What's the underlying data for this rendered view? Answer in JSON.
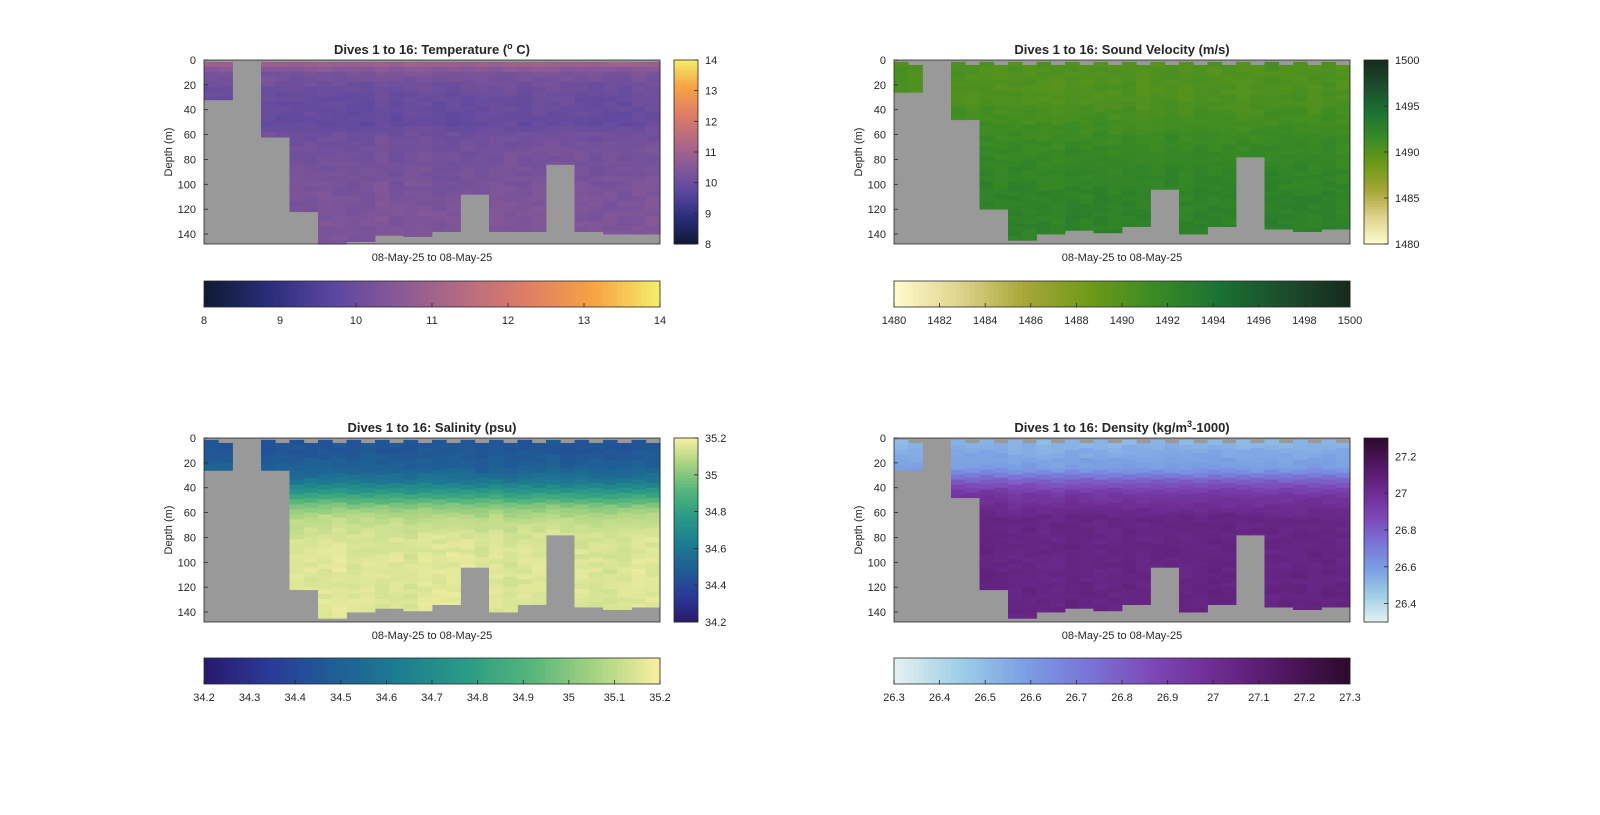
{
  "colors": {
    "land": "#999999",
    "axis": "#262626",
    "temperature_map": [
      "#0e1a33",
      "#2a2d7a",
      "#5b47a0",
      "#8a5a96",
      "#b76a82",
      "#e07f64",
      "#f7a444",
      "#f4ef6c"
    ],
    "sound_velocity_map": [
      "#fefccd",
      "#dfd38e",
      "#a8a738",
      "#6f9a18",
      "#3a8b24",
      "#1b7133",
      "#1b4d2c",
      "#182a1f"
    ],
    "salinity_map": [
      "#29186b",
      "#2a3a97",
      "#1f5e95",
      "#1d7d90",
      "#2a9a86",
      "#55b57b",
      "#a6d381",
      "#f9f0a3"
    ],
    "density_map": [
      "#e6f1f1",
      "#9fcfe6",
      "#7ba0e3",
      "#7a73d7",
      "#7c47b5",
      "#6d2a8f",
      "#50165f",
      "#2c0a2d"
    ]
  },
  "chart_data": [
    {
      "type": "heatmap",
      "title": "Dives 1 to 16: Temperature (",
      "title_sup": "o",
      "title_after": " C)",
      "xlabel": "08-May-25 to 08-May-25",
      "ylabel": "Depth (m)",
      "ylim": [
        0,
        148
      ],
      "yticks": [
        0,
        20,
        40,
        60,
        80,
        100,
        120,
        140
      ],
      "y_reversed": true,
      "vertical_colorbar": {
        "range": [
          8,
          14
        ],
        "ticks": [
          "14",
          "13",
          "12",
          "11",
          "10",
          "9",
          "8"
        ]
      },
      "horizontal_colorbar": {
        "range": [
          8,
          14
        ],
        "ticks": [
          "8",
          "9",
          "10",
          "11",
          "12",
          "13",
          "14"
        ]
      },
      "dive_max_depth_m": [
        32,
        0,
        62,
        122,
        148,
        146,
        141,
        142,
        138,
        108,
        138,
        138,
        84,
        138,
        140,
        140
      ],
      "profile": {
        "depth_m": [
          0,
          10,
          20,
          30,
          40,
          50,
          60,
          80,
          100,
          120,
          148
        ],
        "value": [
          11.2,
          10.3,
          10.1,
          9.95,
          9.95,
          9.85,
          10.1,
          10.2,
          10.25,
          10.35,
          10.35
        ]
      }
    },
    {
      "type": "heatmap",
      "title": "Dives 1 to 16: Sound Velocity (m/s)",
      "xlabel": "08-May-25 to 08-May-25",
      "ylabel": "Depth (m)",
      "ylim": [
        0,
        148
      ],
      "yticks": [
        0,
        20,
        40,
        60,
        80,
        100,
        120,
        140
      ],
      "y_reversed": true,
      "vertical_colorbar": {
        "range": [
          1480,
          1500
        ],
        "ticks": [
          "1500",
          "1495",
          "1490",
          "1485",
          "1480"
        ]
      },
      "horizontal_colorbar": {
        "range": [
          1480,
          1500
        ],
        "ticks": [
          "1480",
          "1482",
          "1484",
          "1486",
          "1488",
          "1490",
          "1492",
          "1494",
          "1496",
          "1498",
          "1500"
        ]
      },
      "dive_max_depth_m": [
        26,
        0,
        48,
        120,
        145,
        140,
        137,
        139,
        134,
        104,
        140,
        134,
        78,
        136,
        138,
        136
      ],
      "profile": {
        "depth_m": [
          0,
          10,
          30,
          50,
          60,
          70,
          90,
          110,
          148
        ],
        "value": [
          1490.2,
          1490.3,
          1490.4,
          1491.0,
          1491.4,
          1491.7,
          1492.1,
          1492.4,
          1492.6
        ]
      }
    },
    {
      "type": "heatmap",
      "title": "Dives 1 to 16: Salinity (psu)",
      "xlabel": "08-May-25 to 08-May-25",
      "ylabel": "Depth (m)",
      "ylim": [
        0,
        148
      ],
      "yticks": [
        0,
        20,
        40,
        60,
        80,
        100,
        120,
        140
      ],
      "y_reversed": true,
      "vertical_colorbar": {
        "range": [
          34.2,
          35.2
        ],
        "ticks": [
          "35.2",
          "35",
          "34.8",
          "34.6",
          "34.4",
          "34.2"
        ]
      },
      "horizontal_colorbar": {
        "range": [
          34.2,
          35.2
        ],
        "ticks": [
          "34.2",
          "34.3",
          "34.4",
          "34.5",
          "34.6",
          "34.7",
          "34.8",
          "34.9",
          "35",
          "35.1",
          "35.2"
        ]
      },
      "dive_max_depth_m": [
        26,
        0,
        26,
        122,
        145,
        140,
        137,
        139,
        134,
        104,
        140,
        134,
        78,
        136,
        138,
        136
      ],
      "profile": {
        "depth_m": [
          0,
          10,
          25,
          35,
          45,
          55,
          65,
          80,
          100,
          148
        ],
        "value": [
          34.45,
          34.45,
          34.5,
          34.6,
          34.8,
          35.0,
          35.1,
          35.14,
          35.15,
          35.15
        ]
      }
    },
    {
      "type": "heatmap",
      "title": "Dives 1 to 16: Density (kg/m",
      "title_sup": "3",
      "title_after": "-1000)",
      "xlabel": "08-May-25 to 08-May-25",
      "ylabel": "Depth (m)",
      "ylim": [
        0,
        148
      ],
      "yticks": [
        0,
        20,
        40,
        60,
        80,
        100,
        120,
        140
      ],
      "y_reversed": true,
      "vertical_colorbar": {
        "range": [
          26.3,
          27.3
        ],
        "ticks": [
          "27.2",
          "27",
          "26.8",
          "26.6",
          "26.4"
        ]
      },
      "horizontal_colorbar": {
        "range": [
          26.3,
          27.3
        ],
        "ticks": [
          "26.3",
          "26.4",
          "26.5",
          "26.6",
          "26.7",
          "26.8",
          "26.9",
          "27",
          "27.1",
          "27.2",
          "27.3"
        ]
      },
      "dive_max_depth_m": [
        26,
        0,
        48,
        122,
        145,
        140,
        137,
        139,
        134,
        104,
        140,
        134,
        78,
        136,
        138,
        136
      ],
      "profile": {
        "depth_m": [
          0,
          10,
          25,
          35,
          45,
          55,
          65,
          80,
          100,
          148
        ],
        "value": [
          26.5,
          26.55,
          26.6,
          26.8,
          26.95,
          27.0,
          27.05,
          27.05,
          27.05,
          27.06
        ]
      }
    }
  ]
}
